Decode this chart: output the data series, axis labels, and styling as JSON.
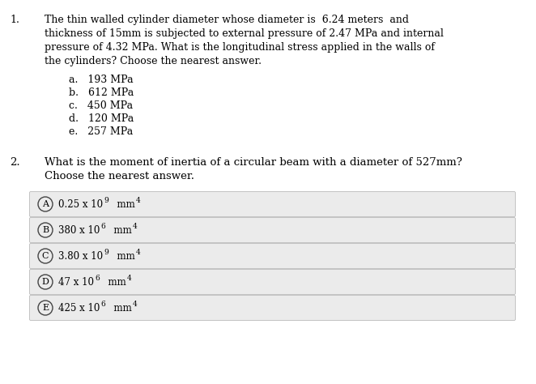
{
  "bg_color": "#ffffff",
  "text_color": "#000000",
  "q1_number": "1.",
  "q1_text_lines": [
    "The thin walled cylinder diameter whose diameter is  6.24 meters  and",
    "thickness of 15mm is subjected to external pressure of 2.47 MPa and internal",
    "pressure of 4.32 MPa. What is the longitudinal stress applied in the walls of",
    "the cylinders? Choose the nearest answer."
  ],
  "q1_choices": [
    "a.   193 MPa",
    "b.   612 MPa",
    "c.   450 MPa",
    "d.   120 MPa",
    "e.   257 MPa"
  ],
  "q2_number": "2.",
  "q2_text_lines": [
    "What is the moment of inertia of a circular beam with a diameter of 527mm?",
    "Choose the nearest answer."
  ],
  "q2_choices": [
    {
      "letter": "A",
      "text_main": "0.25 x 10",
      "sup": "9",
      "text_end": "  mm",
      "sup2": "4"
    },
    {
      "letter": "B",
      "text_main": "380 x 10",
      "sup": "6",
      "text_end": "  mm",
      "sup2": "4"
    },
    {
      "letter": "C",
      "text_main": "3.80 x 10",
      "sup": "9",
      "text_end": "  mm",
      "sup2": "4"
    },
    {
      "letter": "D",
      "text_main": "47 x 10",
      "sup": "6",
      "text_end": "  mm",
      "sup2": "4"
    },
    {
      "letter": "E",
      "text_main": "425 x 10",
      "sup": "6",
      "text_end": "  mm",
      "sup2": "4"
    }
  ],
  "choice_box_color": "#ebebeb",
  "choice_box_edge": "#bbbbbb",
  "font_family": "DejaVu Serif",
  "q1_fontsize": 9.0,
  "q2_fontsize": 9.5,
  "choice_fontsize": 8.5,
  "choice_sup_fontsize": 6.5
}
